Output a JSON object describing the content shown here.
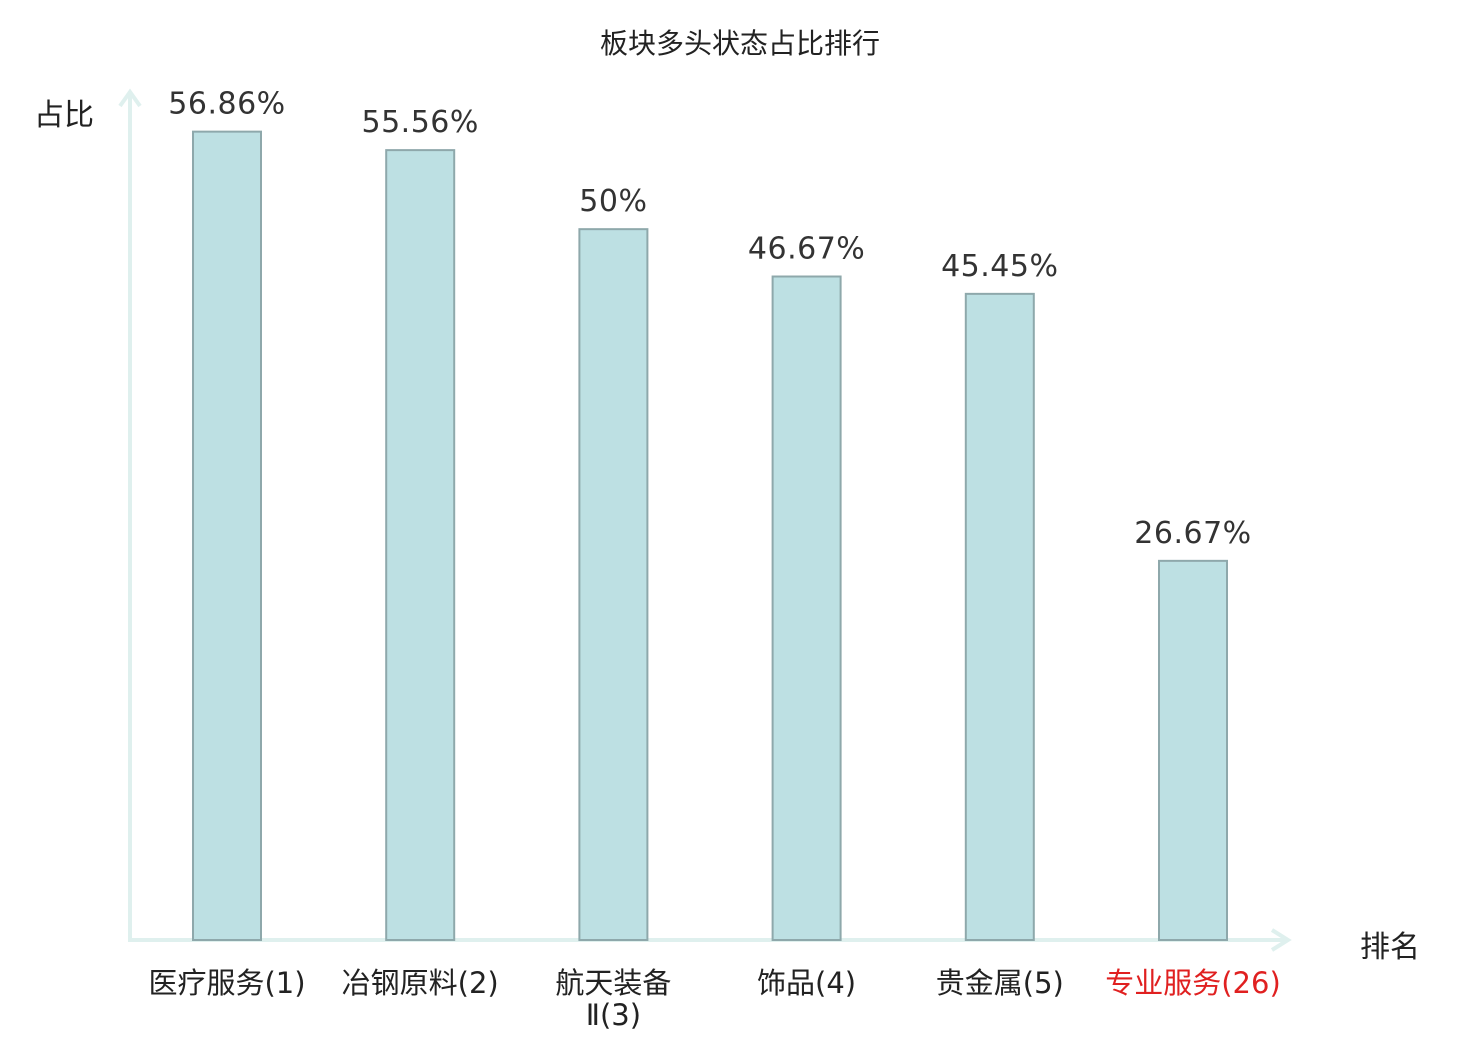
{
  "chart_data": {
    "type": "bar",
    "title": "板块多头状态占比排行",
    "ylabel": "占比",
    "xlabel": "排名",
    "categories": [
      "医疗服务(1)",
      "冶钢原料(2)",
      "航天装备Ⅱ(3)",
      "饰品(4)",
      "贵金属(5)",
      "专业服务(26)"
    ],
    "values": [
      56.86,
      55.56,
      50,
      46.67,
      45.45,
      26.67
    ],
    "value_labels": [
      "56.86%",
      "55.56%",
      "50%",
      "46.67%",
      "45.45%",
      "26.67%"
    ],
    "ylim": [
      0,
      60
    ],
    "grid": false,
    "legend": "none",
    "highlight_index": 5,
    "colors": {
      "bar_fill": "#bde0e3",
      "bar_stroke": "#8ea8ab",
      "axis": "#dff0ee",
      "highlight_label": "#e02020"
    }
  }
}
